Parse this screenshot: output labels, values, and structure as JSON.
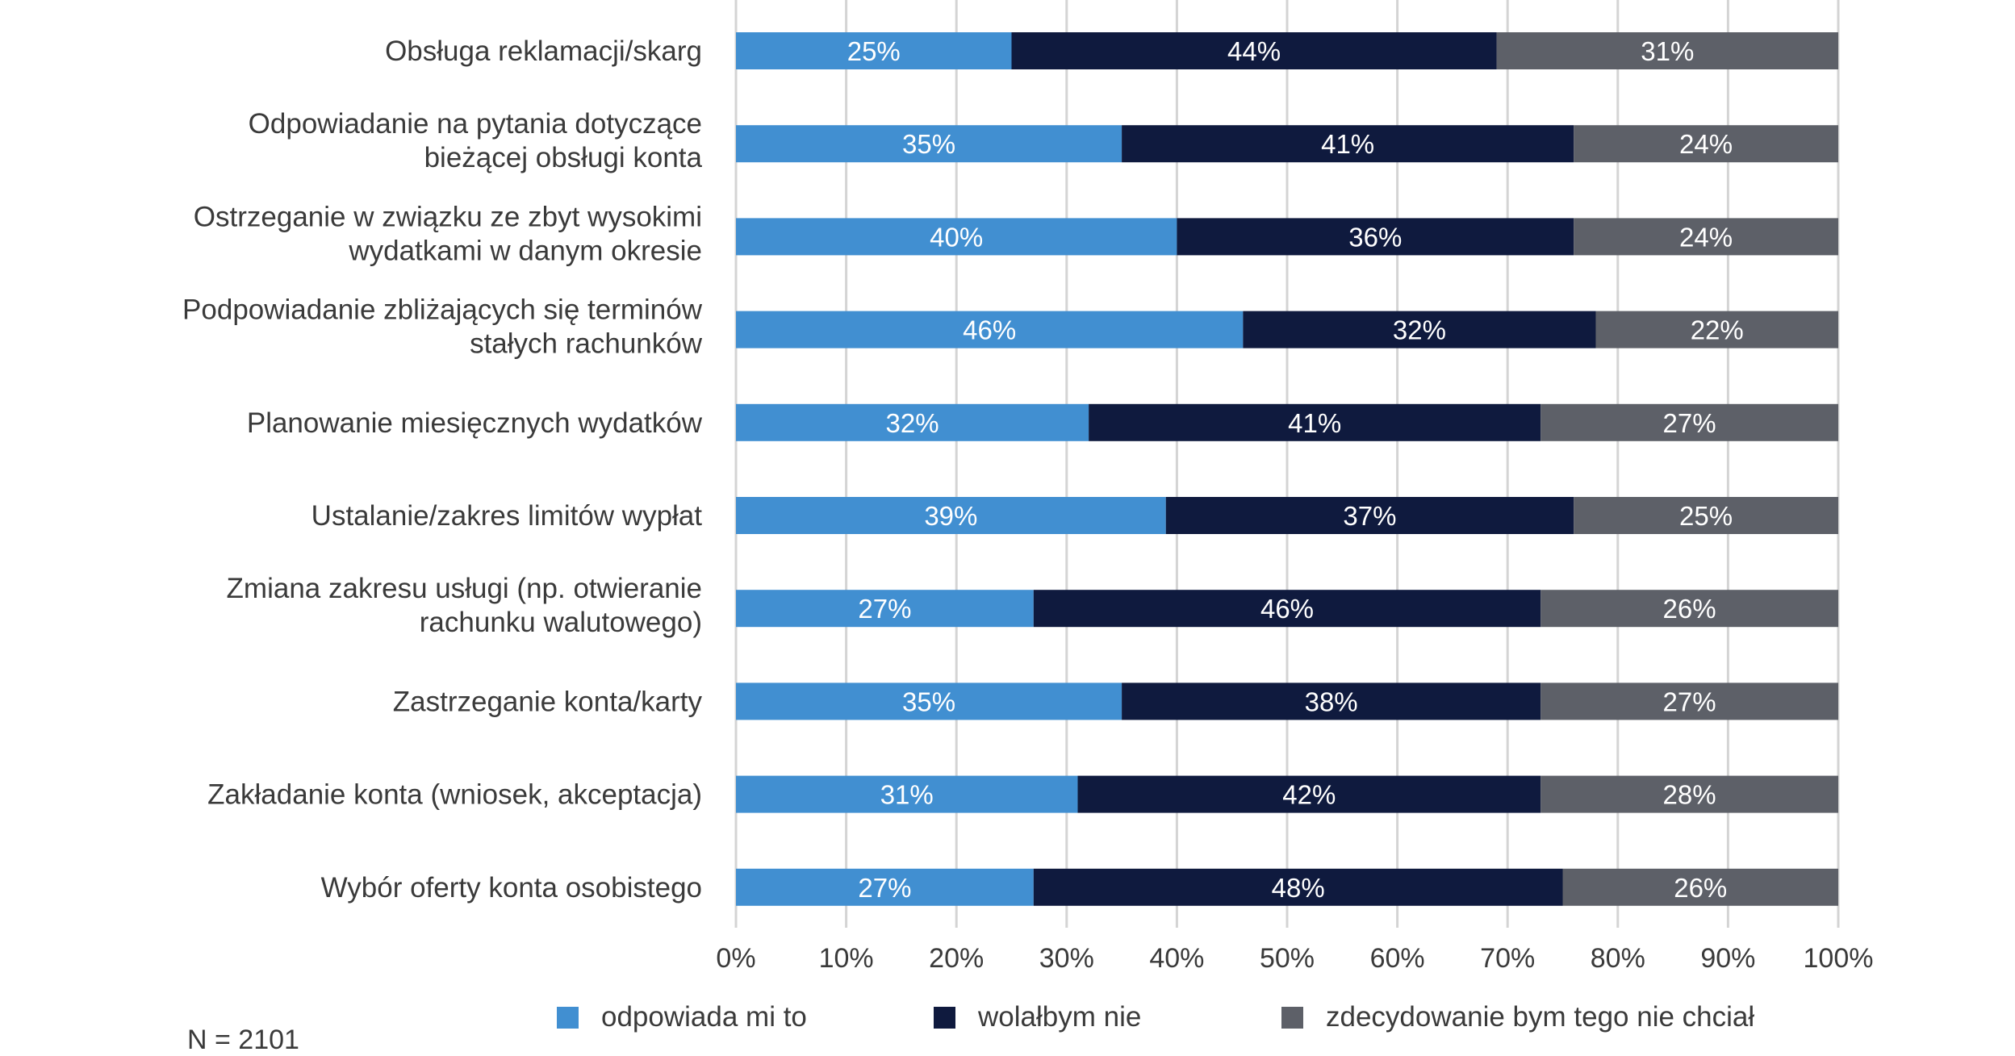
{
  "chart_data": {
    "type": "bar",
    "orientation": "horizontal",
    "stacked": true,
    "categories": [
      [
        "Obsługa reklamacji/skarg"
      ],
      [
        "Odpowiadanie na pytania dotyczące",
        "bieżącej obsługi konta"
      ],
      [
        "Ostrzeganie w związku ze zbyt wysokimi",
        "wydatkami w danym okresie"
      ],
      [
        "Podpowiadanie zbliżających się terminów",
        "stałych rachunków"
      ],
      [
        "Planowanie miesięcznych wydatków"
      ],
      [
        "Ustalanie/zakres limitów wypłat"
      ],
      [
        "Zmiana zakresu usługi (np. otwieranie",
        "rachunku walutowego)"
      ],
      [
        "Zastrzeganie konta/karty"
      ],
      [
        "Zakładanie konta (wniosek, akceptacja)"
      ],
      [
        "Wybór oferty konta osobistego"
      ]
    ],
    "series": [
      {
        "name": "odpowiada mi to",
        "color": "#418fd1",
        "values": [
          25,
          35,
          40,
          46,
          32,
          39,
          27,
          35,
          31,
          27
        ],
        "labels": [
          "25%",
          "35%",
          "40%",
          "46%",
          "32%",
          "39%",
          "27%",
          "35%",
          "31%",
          "27%"
        ]
      },
      {
        "name": "wolałbym nie",
        "color": "#0f1a3e",
        "values": [
          44,
          41,
          36,
          32,
          41,
          37,
          46,
          38,
          42,
          48
        ],
        "labels": [
          "44%",
          "41%",
          "36%",
          "32%",
          "41%",
          "37%",
          "46%",
          "38%",
          "42%",
          "48%"
        ]
      },
      {
        "name": "zdecydowanie bym tego nie chciał",
        "color": "#5d6068",
        "values": [
          31,
          24,
          24,
          22,
          27,
          25,
          26,
          27,
          28,
          26
        ],
        "labels": [
          "31%",
          "24%",
          "24%",
          "22%",
          "27%",
          "25%",
          "26%",
          "27%",
          "28%",
          "26%"
        ]
      }
    ],
    "xlim": [
      0,
      100
    ],
    "xticks": [
      "0%",
      "10%",
      "20%",
      "30%",
      "40%",
      "50%",
      "60%",
      "70%",
      "80%",
      "90%",
      "100%"
    ],
    "grid": true,
    "legend_position": "bottom",
    "note": "N = 2101"
  }
}
